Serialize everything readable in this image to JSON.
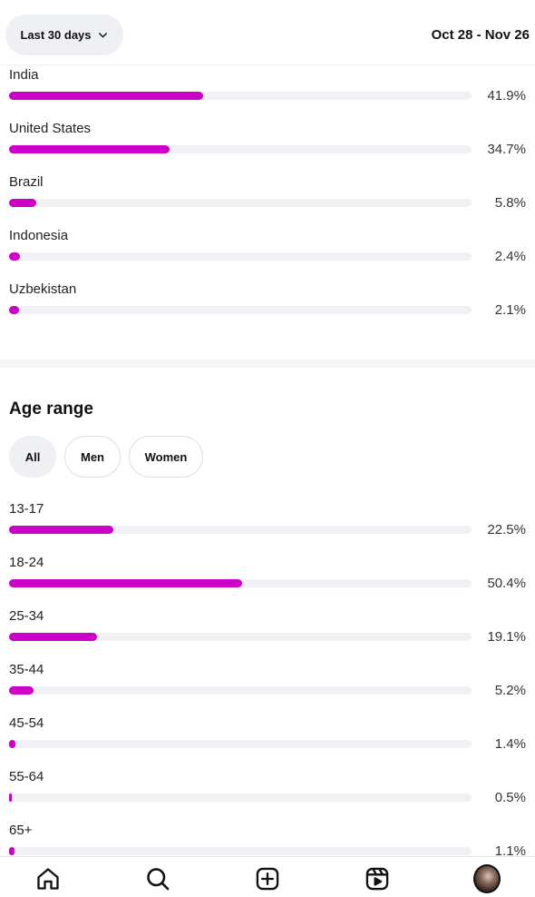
{
  "header": {
    "range_label": "Last 30 days",
    "date_range": "Oct 28 - Nov 26"
  },
  "countries": [
    {
      "name": "India",
      "percent_label": "41.9%",
      "value": 41.9
    },
    {
      "name": "United States",
      "percent_label": "34.7%",
      "value": 34.7
    },
    {
      "name": "Brazil",
      "percent_label": "5.8%",
      "value": 5.8
    },
    {
      "name": "Indonesia",
      "percent_label": "2.4%",
      "value": 2.4
    },
    {
      "name": "Uzbekistan",
      "percent_label": "2.1%",
      "value": 2.1
    }
  ],
  "age_range": {
    "title": "Age range",
    "filters": [
      {
        "label": "All",
        "active": true
      },
      {
        "label": "Men",
        "active": false
      },
      {
        "label": "Women",
        "active": false
      }
    ],
    "rows": [
      {
        "name": "13-17",
        "percent_label": "22.5%",
        "value": 22.5
      },
      {
        "name": "18-24",
        "percent_label": "50.4%",
        "value": 50.4
      },
      {
        "name": "25-34",
        "percent_label": "19.1%",
        "value": 19.1
      },
      {
        "name": "35-44",
        "percent_label": "5.2%",
        "value": 5.2
      },
      {
        "name": "45-54",
        "percent_label": "1.4%",
        "value": 1.4
      },
      {
        "name": "55-64",
        "percent_label": "0.5%",
        "value": 0.5
      },
      {
        "name": "65+",
        "percent_label": "1.1%",
        "value": 1.1
      }
    ]
  },
  "bottom_nav": [
    {
      "icon": "home-icon"
    },
    {
      "icon": "search-icon"
    },
    {
      "icon": "create-icon"
    },
    {
      "icon": "reels-icon"
    },
    {
      "icon": "profile-avatar"
    }
  ],
  "colors": {
    "bar_fill": "#cc00c6",
    "bar_track": "#f0f1f4"
  }
}
